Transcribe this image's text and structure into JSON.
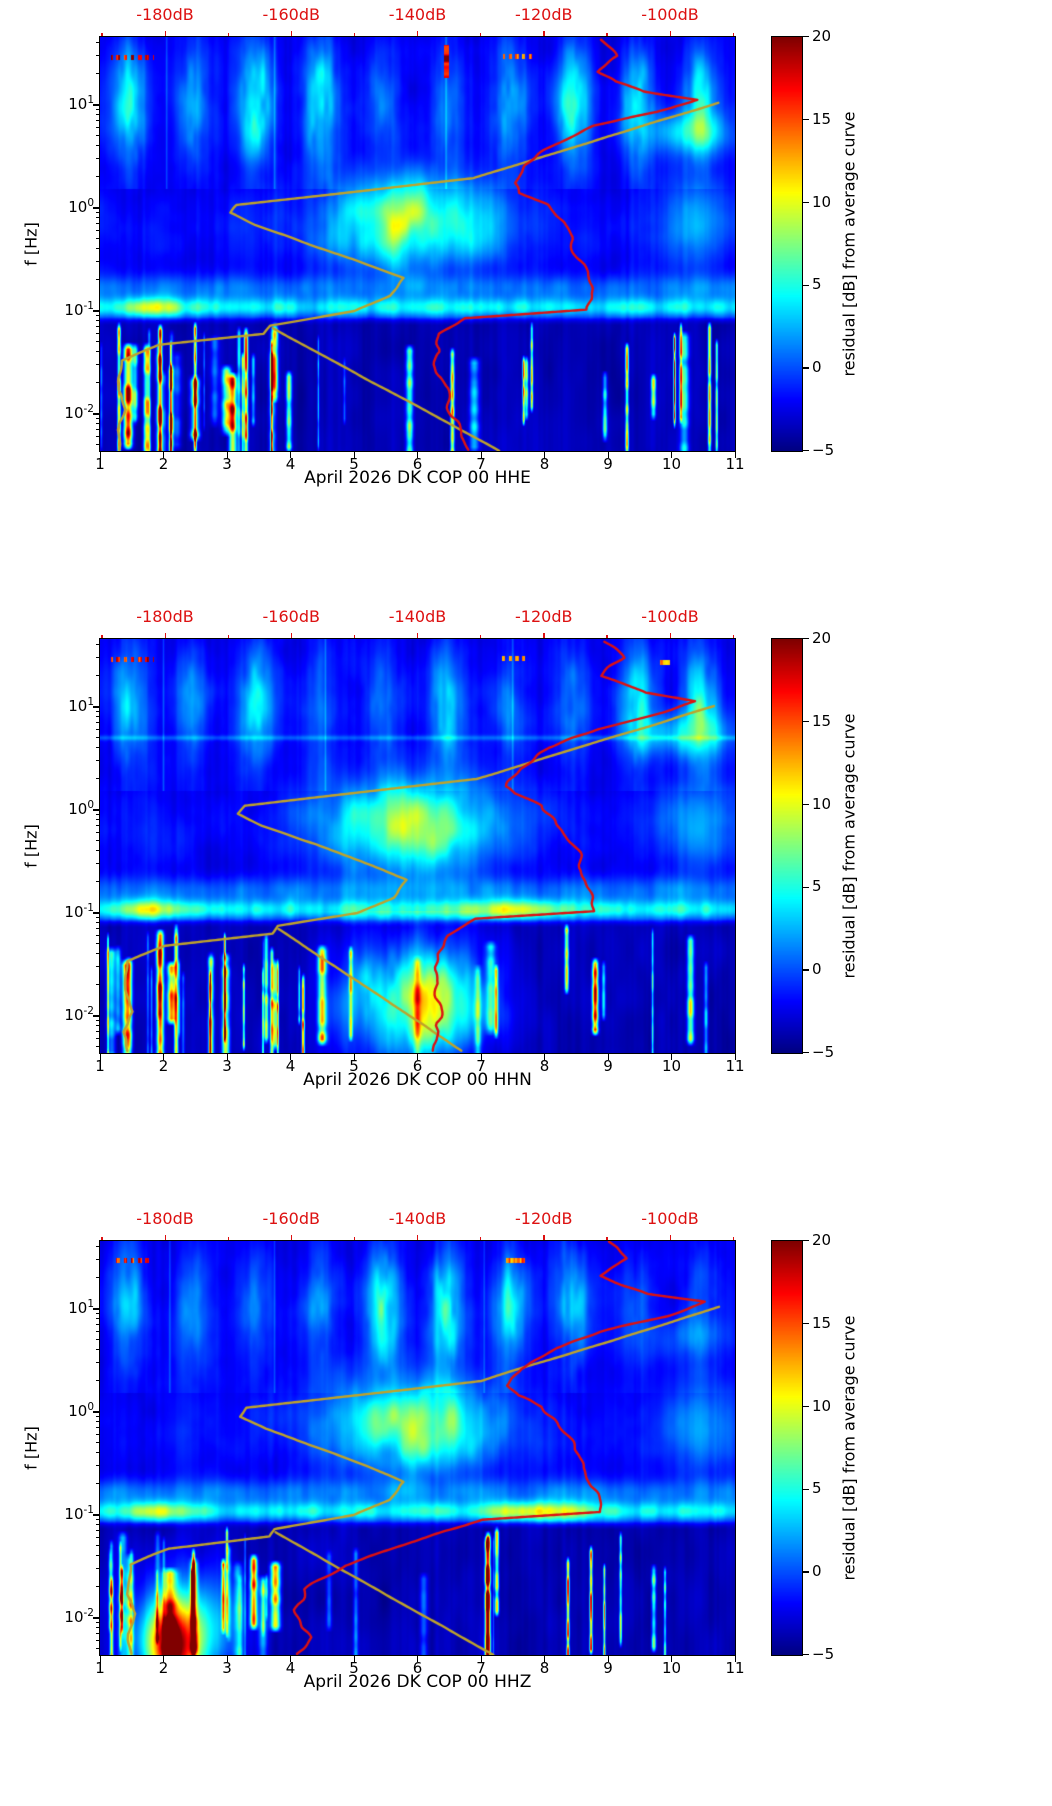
{
  "figure": {
    "background": "#ffffff",
    "ylabel": "f [Hz]",
    "x_ticks": [
      "1",
      "2",
      "3",
      "4",
      "5",
      "6",
      "7",
      "8",
      "9",
      "10",
      "11"
    ],
    "x_tick_values": [
      1,
      2,
      3,
      4,
      5,
      6,
      7,
      8,
      9,
      10,
      11
    ],
    "y_ticks": [
      {
        "base": "10",
        "exp": "1",
        "value_hz": 10
      },
      {
        "base": "10",
        "exp": "0",
        "value_hz": 1
      },
      {
        "base": "10",
        "exp": "-1",
        "value_hz": 0.1
      },
      {
        "base": "10",
        "exp": "-2",
        "value_hz": 0.01
      }
    ],
    "top_axis": {
      "color": "#dd1111",
      "tick_labels": [
        "-180dB",
        "-160dB",
        "-140dB",
        "-120dB",
        "-100dB"
      ],
      "tick_values_db": [
        -180,
        -160,
        -140,
        -120,
        -100
      ],
      "note": "red dB axis applies to the overlaid PSD curves"
    },
    "colorbar": {
      "label": "residual [dB] from average curve",
      "tick_labels": [
        "20",
        "15",
        "10",
        "5",
        "0",
        "−5"
      ],
      "tick_values": [
        20,
        15,
        10,
        5,
        0,
        -5
      ],
      "vmin": -5,
      "vmax": 20,
      "colormap": "jet"
    },
    "curve_colors": {
      "mean_psd_red": "#dd1111",
      "baseline_olive": "#bfa32b"
    }
  },
  "chart_data": [
    {
      "type": "heatmap",
      "subtype": "spectrogram",
      "channel": "HHE",
      "xlabel": "April 2026 DK COP 00 HHE",
      "x_range_days": [
        1,
        11
      ],
      "y_range_hz": [
        0.0044,
        45
      ],
      "y_scale": "log",
      "value_label": "residual [dB] from average curve",
      "value_range_db": [
        -5,
        20
      ],
      "mean_psd_curve_red": [
        [
          -111,
          43
        ],
        [
          -108.5,
          30
        ],
        [
          -111.5,
          21
        ],
        [
          -109.5,
          17
        ],
        [
          -104,
          13.5
        ],
        [
          -95.5,
          11.2
        ],
        [
          -102,
          8.6
        ],
        [
          -112,
          6.3
        ],
        [
          -118,
          4.2
        ],
        [
          -123,
          2.6
        ],
        [
          -125,
          1.75
        ],
        [
          -124,
          1.4
        ],
        [
          -119.5,
          1.08
        ],
        [
          -117.5,
          0.72
        ],
        [
          -115.5,
          0.42
        ],
        [
          -113.5,
          0.24
        ],
        [
          -112.5,
          0.13
        ],
        [
          -112.8,
          0.103
        ],
        [
          -133,
          0.085
        ],
        [
          -136.5,
          0.06
        ],
        [
          -137.5,
          0.038
        ],
        [
          -135.5,
          0.02
        ],
        [
          -134.5,
          0.0095
        ],
        [
          -131.5,
          0.0045
        ]
      ],
      "baseline_curve_olive": [
        [
          -92.5,
          10.5
        ],
        [
          -131,
          1.95
        ],
        [
          -168.5,
          1.07
        ],
        [
          -169.5,
          0.9
        ],
        [
          -165.5,
          0.68
        ],
        [
          -157,
          0.44
        ],
        [
          -149,
          0.3
        ],
        [
          -142,
          0.21
        ],
        [
          -144.5,
          0.14
        ],
        [
          -150,
          0.1
        ],
        [
          -163.5,
          0.072
        ],
        [
          -164.5,
          0.06
        ],
        [
          -181,
          0.047
        ],
        [
          -187,
          0.033
        ],
        [
          -187.5,
          0.017
        ],
        [
          -186,
          0.011
        ],
        [
          -187.5,
          0.007
        ],
        [
          -187,
          0.0045
        ]
      ],
      "baseline_segment_olive": [
        [
          -163,
          0.068
        ],
        [
          -127,
          0.0044
        ]
      ],
      "spectrogram_features": [
        "daily anthropogenic noise columns 2-40 Hz",
        "elevated microseism band 0.08-0.2 Hz with bright spots days 1.3-2.5",
        "storm noise 0.3-1.2 Hz days 4-7.5",
        "dark background with transient vertical stripes below 0.08 Hz, densest days 1-3.5",
        "orange dashes near 30 Hz days 1.2-1.8 and 7.3-7.8",
        "red vertical dash near 25 Hz day 6.45"
      ]
    },
    {
      "type": "heatmap",
      "subtype": "spectrogram",
      "channel": "HHN",
      "xlabel": "April 2026 DK COP 00 HHN",
      "x_range_days": [
        1,
        11
      ],
      "y_range_hz": [
        0.0044,
        45
      ],
      "y_scale": "log",
      "value_label": "residual [dB] from average curve",
      "value_range_db": [
        -5,
        20
      ],
      "mean_psd_curve_red": [
        [
          -110,
          43
        ],
        [
          -107.5,
          30
        ],
        [
          -110.5,
          20
        ],
        [
          -104,
          13.8
        ],
        [
          -96,
          11.4
        ],
        [
          -101.5,
          8.8
        ],
        [
          -111.5,
          6.1
        ],
        [
          -119,
          4
        ],
        [
          -124,
          2.5
        ],
        [
          -126,
          1.7
        ],
        [
          -125,
          1.45
        ],
        [
          -120.5,
          1.1
        ],
        [
          -118,
          0.78
        ],
        [
          -115.5,
          0.46
        ],
        [
          -113.5,
          0.26
        ],
        [
          -112.5,
          0.14
        ],
        [
          -112,
          0.104
        ],
        [
          -131,
          0.088
        ],
        [
          -135,
          0.06
        ],
        [
          -136.5,
          0.04
        ],
        [
          -137.5,
          0.022
        ],
        [
          -136.5,
          0.011
        ],
        [
          -137,
          0.0046
        ]
      ],
      "baseline_curve_olive": [
        [
          -93,
          10.2
        ],
        [
          -130.5,
          2.0
        ],
        [
          -167.5,
          1.1
        ],
        [
          -168.5,
          0.92
        ],
        [
          -164.5,
          0.7
        ],
        [
          -156,
          0.46
        ],
        [
          -148,
          0.3
        ],
        [
          -141.5,
          0.21
        ],
        [
          -144,
          0.14
        ],
        [
          -149.5,
          0.1
        ],
        [
          -162,
          0.075
        ],
        [
          -163,
          0.063
        ],
        [
          -180,
          0.048
        ],
        [
          -186,
          0.034
        ],
        [
          -186.5,
          0.018
        ],
        [
          -185,
          0.011
        ],
        [
          -186.5,
          0.007
        ],
        [
          -186,
          0.0046
        ]
      ],
      "baseline_segment_olive": [
        [
          -162,
          0.07
        ],
        [
          -133,
          0.0046
        ]
      ],
      "spectrogram_features": [
        "daily anthropogenic noise columns 2-40 Hz",
        "microseism band 0.08-0.2 Hz with orange-red streak days 6.8-8.3",
        "storm noise 0.3-1.2 Hz days 4-7.5",
        "broad warm (yellow-orange) patch 0.01-0.08 Hz days 4.3-7.2 with red core near day 6",
        "transient vertical stripes below 0.08 Hz days 1-3.8",
        "faint horizontal line near 5 Hz",
        "orange dashes near 30 Hz days 1.2-1.8 and 7.3-7.8"
      ]
    },
    {
      "type": "heatmap",
      "subtype": "spectrogram",
      "channel": "HHZ",
      "xlabel": "April 2026 DK COP 00 HHZ",
      "x_range_days": [
        1,
        11
      ],
      "y_range_hz": [
        0.0044,
        45
      ],
      "y_scale": "log",
      "value_label": "residual [dB] from average curve",
      "value_range_db": [
        -5,
        20
      ],
      "mean_psd_curve_red": [
        [
          -110,
          45
        ],
        [
          -107,
          31
        ],
        [
          -110.5,
          21
        ],
        [
          -103.5,
          14
        ],
        [
          -94.5,
          11.8
        ],
        [
          -101,
          8.5
        ],
        [
          -111,
          6
        ],
        [
          -118,
          4.2
        ],
        [
          -123.5,
          2.6
        ],
        [
          -125.5,
          1.8
        ],
        [
          -124.5,
          1.45
        ],
        [
          -120,
          1.12
        ],
        [
          -117.5,
          0.78
        ],
        [
          -115,
          0.46
        ],
        [
          -113,
          0.27
        ],
        [
          -111.5,
          0.15
        ],
        [
          -111,
          0.107
        ],
        [
          -130,
          0.09
        ],
        [
          -136,
          0.07
        ],
        [
          -143,
          0.05
        ],
        [
          -152,
          0.032
        ],
        [
          -158,
          0.019
        ],
        [
          -159,
          0.012
        ],
        [
          -157,
          0.0065
        ],
        [
          -158.5,
          0.0045
        ]
      ],
      "baseline_curve_olive": [
        [
          -92,
          10.5
        ],
        [
          -130,
          2.0
        ],
        [
          -167,
          1.1
        ],
        [
          -168,
          0.9
        ],
        [
          -164,
          0.69
        ],
        [
          -156,
          0.45
        ],
        [
          -148,
          0.3
        ],
        [
          -142,
          0.21
        ],
        [
          -144.5,
          0.14
        ],
        [
          -150,
          0.1
        ],
        [
          -162.5,
          0.073
        ],
        [
          -163.5,
          0.062
        ],
        [
          -179.5,
          0.047
        ],
        [
          -185.5,
          0.033
        ],
        [
          -186,
          0.017
        ],
        [
          -184.5,
          0.011
        ],
        [
          -186,
          0.007
        ],
        [
          -185.5,
          0.0045
        ]
      ],
      "baseline_segment_olive": [
        [
          -162.5,
          0.068
        ],
        [
          -128,
          0.0044
        ]
      ],
      "spectrogram_features": [
        "daily anthropogenic noise columns 2-40 Hz",
        "microseism band 0.08-0.2 Hz with red streak days 6.9-8.6",
        "storm noise 0.3-1.2 Hz days 4-7.5",
        "strong dark-red patch below 0.02 Hz days 1.7-2.7 with orange halo",
        "transient vertical stripes below 0.08 Hz",
        "orange dashes near 30 Hz days 1.3-1.8 and 7.4-7.7"
      ]
    }
  ]
}
